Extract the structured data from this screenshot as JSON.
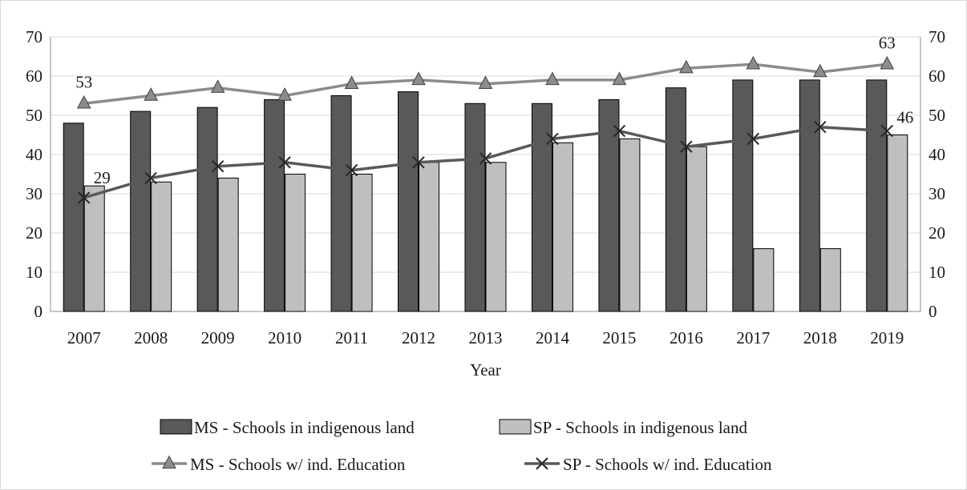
{
  "chart_data": {
    "type": "bar",
    "categories": [
      "2007",
      "2008",
      "2009",
      "2010",
      "2011",
      "2012",
      "2013",
      "2014",
      "2015",
      "2016",
      "2017",
      "2018",
      "2019"
    ],
    "bar_series": [
      {
        "name": "MS - Schools in indigenous land",
        "values": [
          48,
          51,
          52,
          54,
          55,
          56,
          53,
          53,
          54,
          57,
          59,
          59,
          59
        ],
        "color": "#595959"
      },
      {
        "name": "SP - Schools in indigenous land",
        "values": [
          32,
          33,
          34,
          35,
          35,
          38,
          38,
          43,
          44,
          42,
          16,
          16,
          45
        ],
        "color": "#bfbfbf"
      }
    ],
    "line_series": [
      {
        "name": "MS - Schools w/ ind. Education",
        "values": [
          53,
          55,
          57,
          55,
          58,
          59,
          58,
          59,
          59,
          62,
          63,
          61,
          63
        ],
        "color": "#8c8c8c",
        "marker": "triangle"
      },
      {
        "name": "SP - Schools w/ ind. Education",
        "values": [
          29,
          34,
          37,
          38,
          36,
          38,
          39,
          44,
          46,
          42,
          44,
          47,
          46
        ],
        "color": "#595959",
        "marker": "x"
      }
    ],
    "data_labels": [
      {
        "series": 0,
        "index": 0,
        "text": "53"
      },
      {
        "series": 0,
        "index": 12,
        "text": "63"
      },
      {
        "series": 1,
        "index": 0,
        "text": "29"
      },
      {
        "series": 1,
        "index": 12,
        "text": "46"
      }
    ],
    "xlabel": "Year",
    "ylabel": "",
    "ylim": [
      0,
      70
    ],
    "yticks": [
      0,
      10,
      20,
      30,
      40,
      50,
      60,
      70
    ],
    "secondary_y": true,
    "grid": true,
    "legend_position": "bottom"
  }
}
